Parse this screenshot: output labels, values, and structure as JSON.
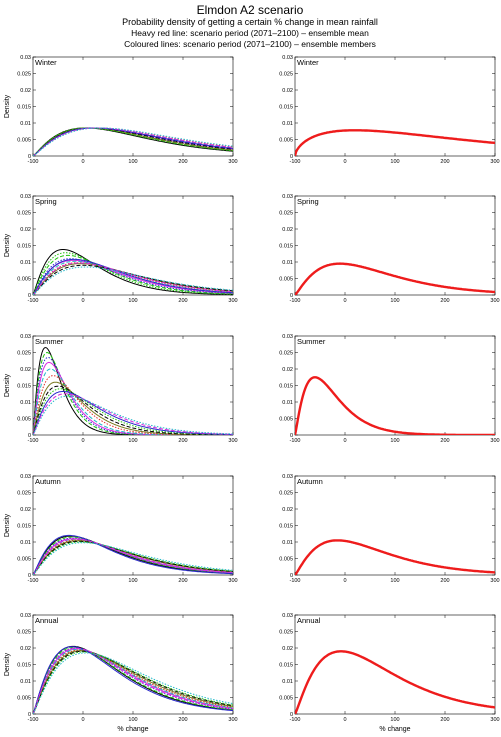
{
  "figure": {
    "title": "Elmdon A2 scenario",
    "subtitle": "Probability density of getting a certain % change in mean rainfall",
    "note1": "Heavy red line: scenario period (2071–2100) – ensemble mean",
    "note2": "Coloured lines: scenario period (2071–2100) – ensemble members",
    "xlabel": "% change",
    "ylabel": "Density"
  },
  "colors": {
    "mean": "#ee1c1c",
    "members": [
      "#000000",
      "#22c40f",
      "#2a2acb",
      "#d62be0",
      "#20b8c8",
      "#e0302a",
      "#7a7a20",
      "#000000",
      "#22c40f",
      "#2a2acb",
      "#d62be0",
      "#20b8c8"
    ]
  },
  "chart_data": [
    {
      "type": "line",
      "title": "Winter",
      "panel": "members",
      "xlim": [
        -100,
        300
      ],
      "ylim": [
        0,
        0.03
      ],
      "xticks": [
        -100,
        0,
        100,
        200,
        300
      ],
      "yticks": [
        0,
        0.005,
        0.01,
        0.015,
        0.02,
        0.025,
        0.03
      ],
      "xticklabels": [
        "-100",
        "0",
        "100",
        "200",
        "300"
      ],
      "yticklabels": [
        "0",
        "0.005",
        "0.01",
        "0.015",
        "0.02",
        "0.025",
        "0.03"
      ],
      "ylabel": "Density",
      "series": [
        {
          "mode": 5,
          "scale": 105,
          "shift": -80
        },
        {
          "mode": 10,
          "scale": 95,
          "shift": -85
        },
        {
          "mode": 15,
          "scale": 110,
          "shift": -78
        },
        {
          "mode": 20,
          "scale": 100,
          "shift": -82
        },
        {
          "mode": 25,
          "scale": 115,
          "shift": -75
        },
        {
          "mode": 30,
          "scale": 105,
          "shift": -80
        },
        {
          "mode": 12,
          "scale": 98,
          "shift": -84
        },
        {
          "mode": 18,
          "scale": 108,
          "shift": -79
        },
        {
          "mode": 8,
          "scale": 102,
          "shift": -83
        },
        {
          "mode": 22,
          "scale": 112,
          "shift": -77
        },
        {
          "mode": 28,
          "scale": 100,
          "shift": -81
        },
        {
          "mode": 35,
          "scale": 118,
          "shift": -74
        }
      ]
    },
    {
      "type": "line",
      "title": "Winter",
      "panel": "mean",
      "xlim": [
        -100,
        300
      ],
      "ylim": [
        0,
        0.03
      ],
      "xticks": [
        -100,
        0,
        100,
        200,
        300
      ],
      "yticks": [
        0,
        0.005,
        0.01,
        0.015,
        0.02,
        0.025,
        0.03
      ],
      "xticklabels": [
        "-100",
        "0",
        "100",
        "200",
        "300"
      ],
      "yticklabels": [
        "0",
        "0.005",
        "0.01",
        "0.015",
        "0.02",
        "0.025",
        "0.03"
      ],
      "series": [
        {
          "mode": 20,
          "peak": 0.0078,
          "skew": 1.6
        }
      ]
    },
    {
      "type": "line",
      "title": "Spring",
      "panel": "members",
      "xlim": [
        -100,
        300
      ],
      "ylim": [
        0,
        0.03
      ],
      "xticks": [
        -100,
        0,
        100,
        200,
        300
      ],
      "yticks": [
        0,
        0.005,
        0.01,
        0.015,
        0.02,
        0.025,
        0.03
      ],
      "xticklabels": [
        "-100",
        "0",
        "100",
        "200",
        "300"
      ],
      "yticklabels": [
        "0",
        "0.005",
        "0.01",
        "0.015",
        "0.02",
        "0.025",
        "0.03"
      ],
      "ylabel": "Density",
      "series": [
        {
          "mode": -40,
          "peak": 0.0138
        },
        {
          "mode": -30,
          "peak": 0.012
        },
        {
          "mode": -25,
          "peak": 0.011
        },
        {
          "mode": -20,
          "peak": 0.0105
        },
        {
          "mode": -15,
          "peak": 0.0102
        },
        {
          "mode": -10,
          "peak": 0.0098
        },
        {
          "mode": -5,
          "peak": 0.0095
        },
        {
          "mode": 0,
          "peak": 0.009
        },
        {
          "mode": -35,
          "peak": 0.0128
        },
        {
          "mode": -18,
          "peak": 0.0108
        },
        {
          "mode": -8,
          "peak": 0.0097
        },
        {
          "mode": 5,
          "peak": 0.0085
        }
      ]
    },
    {
      "type": "line",
      "title": "Spring",
      "panel": "mean",
      "xlim": [
        -100,
        300
      ],
      "ylim": [
        0,
        0.03
      ],
      "xticks": [
        -100,
        0,
        100,
        200,
        300
      ],
      "yticks": [
        0,
        0.005,
        0.01,
        0.015,
        0.02,
        0.025,
        0.03
      ],
      "xticklabels": [
        "-100",
        "0",
        "100",
        "200",
        "300"
      ],
      "yticklabels": [
        "0",
        "0.005",
        "0.01",
        "0.015",
        "0.02",
        "0.025",
        "0.03"
      ],
      "series": [
        {
          "mode": -10,
          "peak": 0.0095
        }
      ]
    },
    {
      "type": "line",
      "title": "Summer",
      "panel": "members",
      "xlim": [
        -100,
        300
      ],
      "ylim": [
        0,
        0.03
      ],
      "xticks": [
        -100,
        0,
        100,
        200,
        300
      ],
      "yticks": [
        0,
        0.005,
        0.01,
        0.015,
        0.02,
        0.025,
        0.03
      ],
      "xticklabels": [
        "-100",
        "0",
        "100",
        "200",
        "300"
      ],
      "yticklabels": [
        "0",
        "0.005",
        "0.01",
        "0.015",
        "0.02",
        "0.025",
        "0.03"
      ],
      "ylabel": "Density",
      "series": [
        {
          "mode": -75,
          "peak": 0.0265
        },
        {
          "mode": -72,
          "peak": 0.025
        },
        {
          "mode": -70,
          "peak": 0.0235
        },
        {
          "mode": -68,
          "peak": 0.022
        },
        {
          "mode": -65,
          "peak": 0.02
        },
        {
          "mode": -60,
          "peak": 0.018
        },
        {
          "mode": -55,
          "peak": 0.016
        },
        {
          "mode": -50,
          "peak": 0.0148
        },
        {
          "mode": -45,
          "peak": 0.014
        },
        {
          "mode": -40,
          "peak": 0.0132
        },
        {
          "mode": -35,
          "peak": 0.0125
        },
        {
          "mode": -30,
          "peak": 0.0118
        }
      ]
    },
    {
      "type": "line",
      "title": "Summer",
      "panel": "mean",
      "xlim": [
        -100,
        300
      ],
      "ylim": [
        0,
        0.03
      ],
      "xticks": [
        -100,
        0,
        100,
        200,
        300
      ],
      "yticks": [
        0,
        0.005,
        0.01,
        0.015,
        0.02,
        0.025,
        0.03
      ],
      "xticklabels": [
        "-100",
        "0",
        "100",
        "200",
        "300"
      ],
      "yticklabels": [
        "0",
        "0.005",
        "0.01",
        "0.015",
        "0.02",
        "0.025",
        "0.03"
      ],
      "series": [
        {
          "mode": -60,
          "peak": 0.0175
        }
      ]
    },
    {
      "type": "line",
      "title": "Autumn",
      "panel": "members",
      "xlim": [
        -100,
        300
      ],
      "ylim": [
        0,
        0.03
      ],
      "xticks": [
        -100,
        0,
        100,
        200,
        300
      ],
      "yticks": [
        0,
        0.005,
        0.01,
        0.015,
        0.02,
        0.025,
        0.03
      ],
      "xticklabels": [
        "-100",
        "0",
        "100",
        "200",
        "300"
      ],
      "yticklabels": [
        "0",
        "0.005",
        "0.01",
        "0.015",
        "0.02",
        "0.025",
        "0.03"
      ],
      "ylabel": "Density",
      "series": [
        {
          "mode": -25,
          "peak": 0.0118
        },
        {
          "mode": -22,
          "peak": 0.0115
        },
        {
          "mode": -20,
          "peak": 0.0112
        },
        {
          "mode": -18,
          "peak": 0.011
        },
        {
          "mode": -15,
          "peak": 0.0108
        },
        {
          "mode": -12,
          "peak": 0.0106
        },
        {
          "mode": -10,
          "peak": 0.0104
        },
        {
          "mode": -8,
          "peak": 0.0102
        },
        {
          "mode": -5,
          "peak": 0.01
        },
        {
          "mode": -28,
          "peak": 0.012
        },
        {
          "mode": -16,
          "peak": 0.0109
        },
        {
          "mode": 0,
          "peak": 0.0098
        }
      ]
    },
    {
      "type": "line",
      "title": "Autumn",
      "panel": "mean",
      "xlim": [
        -100,
        300
      ],
      "ylim": [
        0,
        0.03
      ],
      "xticks": [
        -100,
        0,
        100,
        200,
        300
      ],
      "yticks": [
        0,
        0.005,
        0.01,
        0.015,
        0.02,
        0.025,
        0.03
      ],
      "xticklabels": [
        "-100",
        "0",
        "100",
        "200",
        "300"
      ],
      "yticklabels": [
        "0",
        "0.005",
        "0.01",
        "0.015",
        "0.02",
        "0.025",
        "0.03"
      ],
      "series": [
        {
          "mode": -15,
          "peak": 0.0105
        }
      ]
    },
    {
      "type": "line",
      "title": "Annual",
      "panel": "members",
      "xlim": [
        -100,
        300
      ],
      "ylim": [
        0,
        0.03
      ],
      "xticks": [
        -100,
        0,
        100,
        200,
        300
      ],
      "yticks": [
        0,
        0.005,
        0.01,
        0.015,
        0.02,
        0.025,
        0.03
      ],
      "xticklabels": [
        "-100",
        "0",
        "100",
        "200",
        "300"
      ],
      "yticklabels": [
        "0",
        "0.005",
        "0.01",
        "0.015",
        "0.02",
        "0.025",
        "0.03"
      ],
      "ylabel": "Density",
      "xlabel": "% change",
      "series": [
        {
          "mode": -20,
          "peak": 0.0205
        },
        {
          "mode": -18,
          "peak": 0.0202
        },
        {
          "mode": -15,
          "peak": 0.02
        },
        {
          "mode": -12,
          "peak": 0.0198
        },
        {
          "mode": -10,
          "peak": 0.0196
        },
        {
          "mode": -8,
          "peak": 0.0194
        },
        {
          "mode": -5,
          "peak": 0.0192
        },
        {
          "mode": -2,
          "peak": 0.019
        },
        {
          "mode": 0,
          "peak": 0.0188
        },
        {
          "mode": -22,
          "peak": 0.0204
        },
        {
          "mode": -14,
          "peak": 0.0199
        },
        {
          "mode": 5,
          "peak": 0.0185
        }
      ]
    },
    {
      "type": "line",
      "title": "Annual",
      "panel": "mean",
      "xlim": [
        -100,
        300
      ],
      "ylim": [
        0,
        0.03
      ],
      "xticks": [
        -100,
        0,
        100,
        200,
        300
      ],
      "yticks": [
        0,
        0.005,
        0.01,
        0.015,
        0.02,
        0.025,
        0.03
      ],
      "xticklabels": [
        "-100",
        "0",
        "100",
        "200",
        "300"
      ],
      "yticklabels": [
        "0",
        "0.005",
        "0.01",
        "0.015",
        "0.02",
        "0.025",
        "0.03"
      ],
      "xlabel": "% change",
      "series": [
        {
          "mode": -8,
          "peak": 0.019
        }
      ]
    }
  ]
}
